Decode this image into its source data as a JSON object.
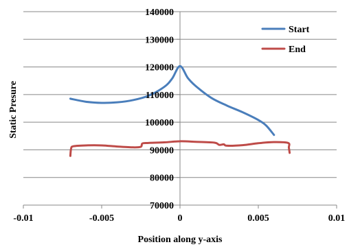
{
  "chart_data": {
    "type": "line",
    "title": "",
    "xlabel": "Position along y-axis",
    "ylabel": "Static Presure",
    "xlim": [
      -0.01,
      0.01
    ],
    "ylim": [
      70000,
      140000
    ],
    "x_ticks": [
      -0.01,
      -0.005,
      0,
      0.005,
      0.01
    ],
    "x_tick_labels": [
      "-0.01",
      "-0.005",
      "0",
      "0.005",
      "0.01"
    ],
    "y_ticks": [
      70000,
      80000,
      90000,
      100000,
      110000,
      120000,
      130000,
      140000
    ],
    "y_tick_labels": [
      "70000",
      "80000",
      "90000",
      "100000",
      "110000",
      "120000",
      "130000",
      "140000"
    ],
    "grid": "horizontal",
    "legend_position": "top-right",
    "series": [
      {
        "name": "Start",
        "color": "#4a7ebb",
        "points": [
          [
            -0.007,
            108500
          ],
          [
            -0.006,
            107400
          ],
          [
            -0.005,
            107000
          ],
          [
            -0.004,
            107200
          ],
          [
            -0.003,
            108000
          ],
          [
            -0.002,
            109600
          ],
          [
            -0.001,
            112800
          ],
          [
            -0.0005,
            115800
          ],
          [
            0.0,
            120300
          ],
          [
            0.0005,
            116000
          ],
          [
            0.001,
            113100
          ],
          [
            0.002,
            108800
          ],
          [
            0.003,
            106000
          ],
          [
            0.004,
            103600
          ],
          [
            0.005,
            100800
          ],
          [
            0.0055,
            98800
          ],
          [
            0.006,
            95400
          ]
        ]
      },
      {
        "name": "End",
        "color": "#be4b48",
        "points": [
          [
            -0.007,
            87800
          ],
          [
            -0.00695,
            90500
          ],
          [
            -0.0068,
            91300
          ],
          [
            -0.006,
            91600
          ],
          [
            -0.005,
            91600
          ],
          [
            -0.004,
            91200
          ],
          [
            -0.003,
            90900
          ],
          [
            -0.0025,
            91100
          ],
          [
            -0.0024,
            92300
          ],
          [
            -0.002,
            92500
          ],
          [
            -0.001,
            92700
          ],
          [
            0.0,
            93100
          ],
          [
            0.001,
            92900
          ],
          [
            0.0022,
            92600
          ],
          [
            0.0025,
            91800
          ],
          [
            0.0028,
            92000
          ],
          [
            0.003,
            91500
          ],
          [
            0.004,
            91700
          ],
          [
            0.005,
            92400
          ],
          [
            0.006,
            92800
          ],
          [
            0.0069,
            92500
          ],
          [
            0.00695,
            90800
          ],
          [
            0.007,
            88900
          ]
        ]
      }
    ]
  }
}
